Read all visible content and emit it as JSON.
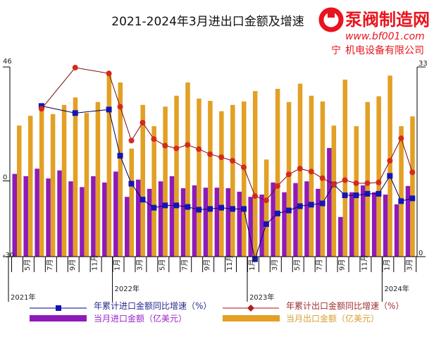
{
  "chart_data": {
    "type": "bar+line",
    "title": "2021-2024年3月进出口金额及增速",
    "categories": [
      "2021-04",
      "2021-05",
      "2021-06",
      "2021-07",
      "2021-08",
      "2021-09",
      "2021-10",
      "2021-11",
      "2021-12",
      "2022-01",
      "2022-02",
      "2022-03",
      "2022-04",
      "2022-05",
      "2022-06",
      "2022-07",
      "2022-08",
      "2022-09",
      "2022-10",
      "2022-11",
      "2022-12",
      "2023-01",
      "2023-02",
      "2023-03",
      "2023-04",
      "2023-05",
      "2023-06",
      "2023-07",
      "2023-08",
      "2023-09",
      "2023-10",
      "2023-11",
      "2023-12",
      "2024-01",
      "2024-02",
      "2024-03"
    ],
    "x_tick_labels": [
      {
        "month": "2021-05",
        "label": "5月"
      },
      {
        "month": "2021-07",
        "label": "7月"
      },
      {
        "month": "2021-09",
        "label": "9月"
      },
      {
        "month": "2021-11",
        "label": "11月"
      },
      {
        "month": "2022-01",
        "label": "1月"
      },
      {
        "month": "2022-03",
        "label": "3月"
      },
      {
        "month": "2022-05",
        "label": "5月"
      },
      {
        "month": "2022-07",
        "label": "7月"
      },
      {
        "month": "2022-09",
        "label": "9月"
      },
      {
        "month": "2022-11",
        "label": "11月"
      },
      {
        "month": "2023-01",
        "label": "1月"
      },
      {
        "month": "2023-03",
        "label": "3月"
      },
      {
        "month": "2023-05",
        "label": "5月"
      },
      {
        "month": "2023-07",
        "label": "7月"
      },
      {
        "month": "2023-09",
        "label": "9月"
      },
      {
        "month": "2023-11",
        "label": "11月"
      },
      {
        "month": "2024-01",
        "label": "1月"
      },
      {
        "month": "2024-03",
        "label": "3月"
      }
    ],
    "year_labels": [
      "2021年",
      "2022年",
      "2023年",
      "2024年"
    ],
    "y_left": {
      "range": [
        -30,
        46
      ],
      "tick_labels": [
        "46",
        "0",
        "-30"
      ]
    },
    "y_right": {
      "range": [
        0,
        33
      ],
      "tick_labels": [
        "33",
        "0"
      ]
    },
    "series": [
      {
        "name": "当月进口金额（亿美元）",
        "kind": "bar",
        "axis": "right",
        "color": "#8E1BB8",
        "values": [
          14.4,
          14.0,
          15.3,
          13.6,
          15.0,
          13.1,
          12.1,
          14.0,
          12.9,
          14.8,
          10.4,
          13.4,
          11.8,
          13.1,
          14.0,
          11.9,
          12.4,
          12.0,
          12.0,
          11.9,
          11.3,
          10.4,
          10.8,
          12.9,
          11.2,
          12.8,
          13.1,
          11.8,
          18.9,
          6.9,
          11.2,
          12.4,
          11.2,
          10.8,
          9.1,
          12.3
        ]
      },
      {
        "name": "当月出口金额（亿美元）",
        "kind": "bar",
        "axis": "right",
        "color": "#E2A024",
        "values": [
          22.8,
          24.5,
          25.5,
          24.8,
          26.4,
          27.7,
          25.0,
          26.9,
          32.0,
          30.3,
          18.8,
          26.4,
          22.7,
          26.1,
          28.0,
          30.3,
          27.5,
          27.1,
          25.3,
          26.4,
          27.0,
          28.8,
          16.9,
          29.2,
          26.9,
          30.1,
          28.0,
          27.0,
          22.8,
          30.8,
          22.7,
          26.9,
          27.9,
          31.5,
          22.7,
          24.4
        ]
      },
      {
        "name": "年累计进口金额同比增速（%）",
        "kind": "line",
        "axis": "left",
        "color": "#1414B4",
        "marker": "square",
        "values": [
          null,
          null,
          29.7,
          null,
          null,
          26.9,
          null,
          null,
          28.3,
          10.0,
          -1.1,
          -7.4,
          -10.6,
          -9.7,
          -9.7,
          -10.3,
          -11.4,
          -11.1,
          -10.6,
          -11.1,
          -11.1,
          -31,
          -17.1,
          -12.9,
          -11.7,
          -10.0,
          -9.4,
          -8.9,
          -1.4,
          -5.7,
          -5.7,
          -5.1,
          -5.1,
          2.0,
          -8.0,
          -6.9
        ]
      },
      {
        "name": "年累计出口金额同比增速（%）",
        "kind": "line",
        "axis": "left",
        "color": "#D42A1E",
        "marker": "circle",
        "values": [
          null,
          null,
          28.6,
          null,
          null,
          44.9,
          null,
          null,
          42.6,
          29.4,
          16.0,
          23.1,
          16.6,
          14.0,
          12.9,
          14.3,
          12.6,
          10.6,
          9.4,
          8.0,
          5.4,
          -6.0,
          -7.7,
          -2.0,
          2.6,
          4.9,
          3.7,
          1.1,
          -1.4,
          0.3,
          -0.9,
          -0.9,
          -0.6,
          8.0,
          16.9,
          3.4
        ]
      }
    ],
    "legend_placement": "bottom",
    "grid": false
  },
  "watermark": {
    "brand": "泵阀制造网",
    "url": "www.bf001.com",
    "company_fragment_1": "宁",
    "company_fragment_2": "机电设备有限公司"
  }
}
